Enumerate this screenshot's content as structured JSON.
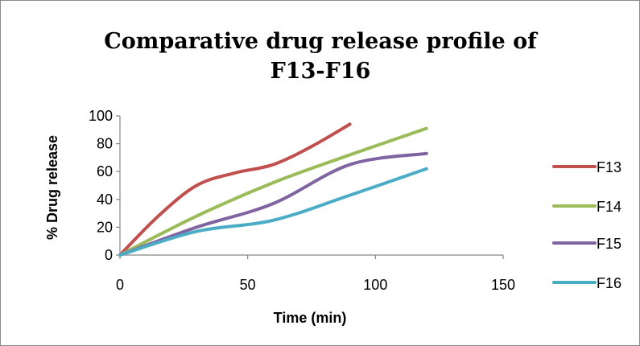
{
  "chart_data": {
    "type": "line",
    "title": [
      "Comparative drug release profile of",
      "F13-F16"
    ],
    "xlabel": "Time (min)",
    "ylabel": "% Drug release",
    "xlim": [
      0,
      150
    ],
    "ylim": [
      0,
      100
    ],
    "xticks": [
      0,
      50,
      100,
      150
    ],
    "yticks": [
      0,
      20,
      40,
      60,
      80,
      100
    ],
    "grid": false,
    "legend": "right",
    "series": [
      {
        "name": "F13",
        "color": "#c0504d",
        "x": [
          0,
          15,
          30,
          45,
          60,
          75,
          90
        ],
        "y": [
          0,
          28,
          50,
          59,
          65,
          78,
          94
        ]
      },
      {
        "name": "F14",
        "color": "#9bbb59",
        "x": [
          0,
          30,
          60,
          90,
          120
        ],
        "y": [
          0,
          28,
          52,
          72,
          91
        ]
      },
      {
        "name": "F15",
        "color": "#8064a2",
        "x": [
          0,
          30,
          60,
          90,
          120
        ],
        "y": [
          0,
          20,
          37,
          65,
          73
        ]
      },
      {
        "name": "F16",
        "color": "#4bacc6",
        "x": [
          0,
          30,
          60,
          90,
          120
        ],
        "y": [
          0,
          17,
          25,
          43,
          62
        ]
      }
    ]
  }
}
